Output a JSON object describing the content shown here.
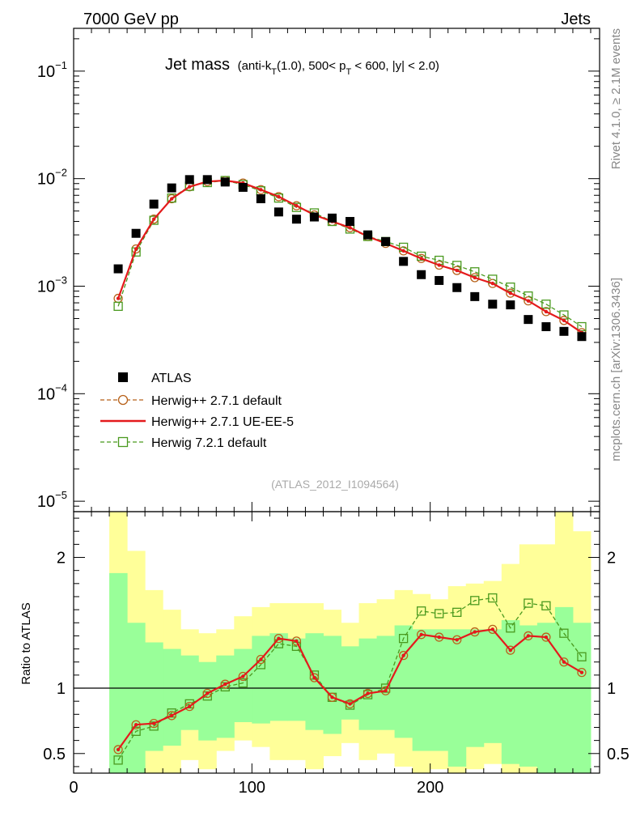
{
  "header": {
    "left": "7000 GeV pp",
    "right": "Jets"
  },
  "side_labels": {
    "rivet": "Rivet 4.1.0, ≥ 2.1M events",
    "mcplots": "mcplots.cern.ch [arXiv:1306.3436]"
  },
  "chart_data": {
    "type": "scatter",
    "title": "Jet mass",
    "subtitle": "(anti-k_T(1.0), 500< p_T < 600, |y| < 2.0)",
    "watermark": "(ATLAS_2012_I1094564)",
    "xlim": [
      0,
      295
    ],
    "x_ticks": [
      0,
      100,
      200
    ],
    "x_tick_labels": [
      "0",
      "100",
      "200"
    ],
    "x": [
      25,
      35,
      45,
      55,
      65,
      75,
      85,
      95,
      105,
      115,
      125,
      135,
      145,
      155,
      165,
      175,
      185,
      195,
      205,
      215,
      225,
      235,
      245,
      255,
      265,
      275,
      285
    ],
    "main_panel": {
      "yscale": "log",
      "ylim": [
        8e-06,
        0.25
      ],
      "y_ticks": [
        1e-05,
        0.0001,
        0.001,
        0.01,
        0.1
      ],
      "y_tick_labels": [
        [
          "10",
          "−5"
        ],
        [
          "10",
          "−4"
        ],
        [
          "10",
          "−3"
        ],
        [
          "10",
          "−2"
        ],
        [
          "10",
          "−1"
        ]
      ],
      "series": [
        {
          "name": "ATLAS",
          "style": "data",
          "color": "#000000",
          "values": [
            0.00145,
            0.0031,
            0.0058,
            0.0082,
            0.0098,
            0.0098,
            0.0093,
            0.0083,
            0.0065,
            0.0049,
            0.0042,
            0.0044,
            0.0043,
            0.004,
            0.003,
            0.0026,
            0.0017,
            0.00128,
            0.00113,
            0.00097,
            0.0008,
            0.00068,
            0.00067,
            0.00049,
            0.00042,
            0.00038,
            0.00034
          ]
        },
        {
          "name": "Herwig++ 2.7.1 default",
          "style": "circle-dashed",
          "color": "#b8621b",
          "values": [
            0.00077,
            0.00222,
            0.0042,
            0.0065,
            0.0084,
            0.0094,
            0.0096,
            0.0091,
            0.0079,
            0.0068,
            0.0056,
            0.0046,
            0.004,
            0.0035,
            0.0029,
            0.0025,
            0.00213,
            0.00181,
            0.00157,
            0.0014,
            0.0012,
            0.00106,
            0.00086,
            0.00073,
            0.00058,
            0.00048,
            0.00037
          ]
        },
        {
          "name": "Herwig++ 2.7.1 UE-EE-5",
          "style": "line",
          "color": "#e41a1c",
          "values": [
            0.00077,
            0.00222,
            0.0042,
            0.0065,
            0.0084,
            0.0094,
            0.0096,
            0.0091,
            0.0079,
            0.0068,
            0.0056,
            0.0046,
            0.004,
            0.0035,
            0.0029,
            0.0025,
            0.00213,
            0.00181,
            0.00157,
            0.0014,
            0.0012,
            0.00106,
            0.00086,
            0.00073,
            0.00058,
            0.00048,
            0.00037
          ]
        },
        {
          "name": "Herwig 7.2.1 default",
          "style": "square-dashed",
          "color": "#4a9a1f",
          "values": [
            0.00065,
            0.00208,
            0.0041,
            0.0066,
            0.0085,
            0.0092,
            0.0096,
            0.0088,
            0.0077,
            0.0066,
            0.0054,
            0.0048,
            0.004,
            0.0034,
            0.0029,
            0.0026,
            0.0023,
            0.0019,
            0.00174,
            0.00156,
            0.00136,
            0.00116,
            0.00098,
            0.00081,
            0.00068,
            0.00054,
            0.00042
          ]
        }
      ]
    },
    "ratio_panel": {
      "ylabel": "Ratio to ATLAS",
      "ylim": [
        0.35,
        2.35
      ],
      "y_ticks": [
        0.5,
        1,
        2
      ],
      "y_tick_labels": [
        "0.5",
        "1",
        "2"
      ],
      "reference": 1,
      "band_edges": [
        20,
        30,
        40,
        50,
        60,
        70,
        80,
        90,
        100,
        110,
        120,
        130,
        140,
        150,
        160,
        170,
        180,
        190,
        200,
        210,
        220,
        230,
        240,
        250,
        260,
        270,
        280,
        290
      ],
      "band_1sigma": [
        [
          0.35,
          1.88
        ],
        [
          0.35,
          1.5
        ],
        [
          0.52,
          1.35
        ],
        [
          0.56,
          1.3
        ],
        [
          0.68,
          1.25
        ],
        [
          0.6,
          1.2
        ],
        [
          0.62,
          1.25
        ],
        [
          0.74,
          1.3
        ],
        [
          0.73,
          1.4
        ],
        [
          0.75,
          1.42
        ],
        [
          0.75,
          1.38
        ],
        [
          0.68,
          1.42
        ],
        [
          0.65,
          1.4
        ],
        [
          0.76,
          1.32
        ],
        [
          0.68,
          1.38
        ],
        [
          0.68,
          1.4
        ],
        [
          0.62,
          1.48
        ],
        [
          0.52,
          1.45
        ],
        [
          0.52,
          1.45
        ],
        [
          0.4,
          1.45
        ],
        [
          0.55,
          1.45
        ],
        [
          0.58,
          1.45
        ],
        [
          0.42,
          1.52
        ],
        [
          0.4,
          1.48
        ],
        [
          0.35,
          1.5
        ],
        [
          0.35,
          1.62
        ],
        [
          0.35,
          1.5
        ]
      ],
      "band_2sigma": [
        [
          0.35,
          2.35
        ],
        [
          0.35,
          2.05
        ],
        [
          0.35,
          1.75
        ],
        [
          0.35,
          1.6
        ],
        [
          0.45,
          1.45
        ],
        [
          0.38,
          1.42
        ],
        [
          0.52,
          1.45
        ],
        [
          0.6,
          1.55
        ],
        [
          0.55,
          1.62
        ],
        [
          0.45,
          1.65
        ],
        [
          0.45,
          1.65
        ],
        [
          0.38,
          1.65
        ],
        [
          0.48,
          1.6
        ],
        [
          0.58,
          1.5
        ],
        [
          0.45,
          1.65
        ],
        [
          0.5,
          1.68
        ],
        [
          0.4,
          1.75
        ],
        [
          0.35,
          1.72
        ],
        [
          0.38,
          1.68
        ],
        [
          0.35,
          1.78
        ],
        [
          0.38,
          1.8
        ],
        [
          0.42,
          1.82
        ],
        [
          0.35,
          1.95
        ],
        [
          0.35,
          2.1
        ],
        [
          0.35,
          2.1
        ],
        [
          0.35,
          2.35
        ],
        [
          0.35,
          2.2
        ]
      ],
      "series": [
        {
          "name": "Herwig++ 2.7.1 default",
          "style": "circle-dashed",
          "color": "#b8621b",
          "values": [
            0.53,
            0.72,
            0.73,
            0.79,
            0.86,
            0.96,
            1.03,
            1.09,
            1.22,
            1.38,
            1.36,
            1.08,
            0.93,
            0.88,
            0.96,
            0.98,
            1.25,
            1.41,
            1.39,
            1.37,
            1.43,
            1.45,
            1.29,
            1.4,
            1.39,
            1.2,
            1.12
          ]
        },
        {
          "name": "Herwig++ 2.7.1 UE-EE-5",
          "style": "line",
          "color": "#e41a1c",
          "values": [
            0.53,
            0.72,
            0.73,
            0.79,
            0.86,
            0.96,
            1.03,
            1.09,
            1.22,
            1.38,
            1.36,
            1.08,
            0.93,
            0.88,
            0.96,
            0.98,
            1.25,
            1.41,
            1.39,
            1.37,
            1.43,
            1.45,
            1.29,
            1.4,
            1.39,
            1.2,
            1.12
          ]
        },
        {
          "name": "Herwig 7.2.1 default",
          "style": "square-dashed",
          "color": "#4a9a1f",
          "values": [
            0.45,
            0.67,
            0.71,
            0.81,
            0.88,
            0.94,
            1.01,
            1.04,
            1.18,
            1.34,
            1.32,
            1.1,
            0.93,
            0.87,
            0.95,
            1.0,
            1.38,
            1.59,
            1.57,
            1.58,
            1.67,
            1.69,
            1.46,
            1.65,
            1.63,
            1.42,
            1.24
          ]
        }
      ]
    },
    "legend": {
      "position": "middle-left",
      "entries": [
        "ATLAS",
        "Herwig++ 2.7.1 default",
        "Herwig++ 2.7.1 UE-EE-5",
        "Herwig 7.2.1 default"
      ]
    }
  }
}
